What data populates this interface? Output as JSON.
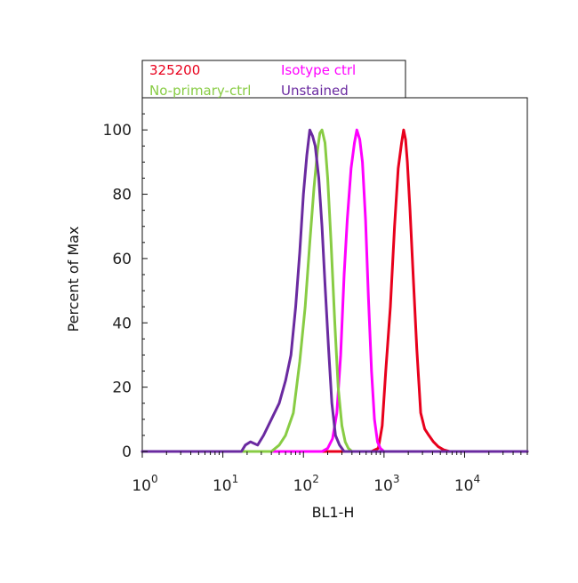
{
  "chart_data": {
    "type": "line",
    "title": "",
    "xlabel": "BL1-H",
    "ylabel": "Percent of Max",
    "xscale": "log",
    "xlim": [
      1,
      60000
    ],
    "ylim": [
      0,
      110
    ],
    "x_tick_values": [
      1,
      10,
      100,
      1000,
      10000
    ],
    "x_tick_labels": [
      {
        "base": "10",
        "exp": "0"
      },
      {
        "base": "10",
        "exp": "1"
      },
      {
        "base": "10",
        "exp": "2"
      },
      {
        "base": "10",
        "exp": "3"
      },
      {
        "base": "10",
        "exp": "4"
      }
    ],
    "y_ticks": [
      0,
      20,
      40,
      60,
      80,
      100
    ],
    "y_tick_labels": [
      "0",
      "20",
      "40",
      "60",
      "80",
      "100"
    ],
    "legend": {
      "placement": "top",
      "entries": [
        "325200",
        "Isotype ctrl",
        "No-primary-ctrl",
        "Unstained"
      ]
    },
    "series": [
      {
        "name": "325200",
        "color": "#e8001c",
        "points": [
          [
            1,
            0
          ],
          [
            700,
            0
          ],
          [
            850,
            1
          ],
          [
            950,
            8
          ],
          [
            1050,
            25
          ],
          [
            1200,
            45
          ],
          [
            1350,
            70
          ],
          [
            1500,
            88
          ],
          [
            1650,
            96
          ],
          [
            1750,
            100
          ],
          [
            1850,
            97
          ],
          [
            1950,
            90
          ],
          [
            2100,
            75
          ],
          [
            2300,
            55
          ],
          [
            2550,
            32
          ],
          [
            2850,
            12
          ],
          [
            3200,
            7
          ],
          [
            3600,
            5
          ],
          [
            4100,
            3
          ],
          [
            4700,
            1.5
          ],
          [
            5500,
            0.5
          ],
          [
            6500,
            0
          ],
          [
            60000,
            0
          ]
        ]
      },
      {
        "name": "Isotype ctrl",
        "color": "#ff00ff",
        "points": [
          [
            1,
            0
          ],
          [
            170,
            0
          ],
          [
            200,
            1
          ],
          [
            230,
            4
          ],
          [
            260,
            12
          ],
          [
            290,
            30
          ],
          [
            320,
            55
          ],
          [
            350,
            72
          ],
          [
            390,
            88
          ],
          [
            430,
            96
          ],
          [
            460,
            100
          ],
          [
            500,
            97
          ],
          [
            540,
            90
          ],
          [
            590,
            72
          ],
          [
            640,
            48
          ],
          [
            700,
            25
          ],
          [
            760,
            10
          ],
          [
            830,
            3
          ],
          [
            900,
            1
          ],
          [
            1000,
            0
          ],
          [
            60000,
            0
          ]
        ]
      },
      {
        "name": "No-primary-ctrl",
        "color": "#88cc44",
        "points": [
          [
            1,
            0
          ],
          [
            40,
            0
          ],
          [
            50,
            2
          ],
          [
            60,
            5
          ],
          [
            75,
            12
          ],
          [
            90,
            28
          ],
          [
            105,
            45
          ],
          [
            120,
            65
          ],
          [
            135,
            82
          ],
          [
            150,
            94
          ],
          [
            160,
            99
          ],
          [
            170,
            100
          ],
          [
            185,
            96
          ],
          [
            200,
            85
          ],
          [
            220,
            65
          ],
          [
            245,
            40
          ],
          [
            270,
            20
          ],
          [
            300,
            8
          ],
          [
            330,
            3
          ],
          [
            360,
            1
          ],
          [
            400,
            0
          ],
          [
            60000,
            0
          ]
        ]
      },
      {
        "name": "Unstained",
        "color": "#6a2aa0",
        "points": [
          [
            1,
            0
          ],
          [
            17,
            0
          ],
          [
            19,
            2
          ],
          [
            22,
            3
          ],
          [
            27,
            2
          ],
          [
            32,
            5
          ],
          [
            40,
            10
          ],
          [
            50,
            15
          ],
          [
            60,
            22
          ],
          [
            70,
            30
          ],
          [
            80,
            45
          ],
          [
            90,
            62
          ],
          [
            100,
            80
          ],
          [
            110,
            92
          ],
          [
            120,
            100
          ],
          [
            130,
            98
          ],
          [
            140,
            95
          ],
          [
            155,
            85
          ],
          [
            170,
            70
          ],
          [
            185,
            52
          ],
          [
            205,
            32
          ],
          [
            225,
            15
          ],
          [
            250,
            5
          ],
          [
            280,
            2
          ],
          [
            320,
            0
          ],
          [
            60000,
            0
          ]
        ]
      }
    ]
  }
}
